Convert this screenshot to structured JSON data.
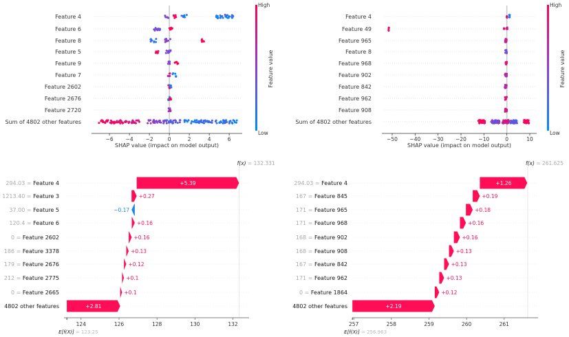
{
  "chart_data": [
    {
      "type": "scatter",
      "subtype": "shap-beeswarm",
      "position": "top-left",
      "xlabel": "SHAP value (impact on model output)",
      "xticks": [
        -6,
        -4,
        -2,
        0,
        2,
        4,
        6
      ],
      "xlim": [
        -7.8,
        7.3
      ],
      "features": [
        "Feature 4",
        "Feature 6",
        "Feature 8",
        "Feature 5",
        "Feature 9",
        "Feature 7",
        "Feature 2602",
        "Feature 2676",
        "Feature 2720",
        "Sum of 4802 other features"
      ],
      "clusters": [
        [
          [
            -0.3,
            -0.2,
            0.5
          ],
          [
            0.5,
            0.2,
            0.9
          ],
          [
            1.5,
            0.3,
            0.1
          ],
          [
            5.6,
            0.9,
            0.15
          ]
        ],
        [
          [
            -1.3,
            0.4,
            0.4
          ],
          [
            0.2,
            0.2,
            0.95
          ]
        ],
        [
          [
            -1.6,
            0.3,
            0.1
          ],
          [
            -0.2,
            0.3,
            0.5
          ],
          [
            3.3,
            0.2,
            0.95
          ]
        ],
        [
          [
            -1.3,
            0.2,
            0.95
          ],
          [
            -0.1,
            0.3,
            0.4
          ]
        ],
        [
          [
            -0.05,
            0.1,
            0.5
          ],
          [
            0.7,
            0.2,
            0.95
          ]
        ],
        [
          [
            -0.1,
            0.2,
            0.7
          ],
          [
            0.5,
            0.2,
            0.1
          ]
        ],
        [
          [
            0.0,
            0.1,
            0.9
          ],
          [
            0.1,
            0.1,
            0.2
          ]
        ],
        [
          [
            0.0,
            0.1,
            0.2
          ],
          [
            0.1,
            0.1,
            0.9
          ]
        ],
        [
          [
            0.0,
            0.1,
            0.5
          ],
          [
            0.05,
            0.1,
            0.7
          ]
        ],
        [
          [
            -6.0,
            1.1,
            0.95
          ],
          [
            -4.0,
            1.0,
            0.85
          ],
          [
            -1.5,
            0.7,
            0.5
          ],
          [
            0.3,
            0.9,
            0.35
          ],
          [
            2.5,
            1.0,
            0.15
          ],
          [
            4.6,
            1.2,
            0.2
          ],
          [
            6.4,
            0.4,
            0.1
          ]
        ]
      ],
      "colorbar": {
        "label": "Feature value",
        "high": "High",
        "low": "Low",
        "high_color": "#ff0052",
        "low_color": "#008bfb"
      }
    },
    {
      "type": "scatter",
      "subtype": "shap-beeswarm",
      "position": "top-right",
      "xlabel": "SHAP value (impact on model output)",
      "xticks": [
        -50,
        -40,
        -30,
        -20,
        -10,
        0,
        10
      ],
      "xlim": [
        -54.5,
        13
      ],
      "features": [
        "Feature 4",
        "Feature 49",
        "Feature 965",
        "Feature 8",
        "Feature 968",
        "Feature 902",
        "Feature 842",
        "Feature 962",
        "Feature 908",
        "Sum of 4802 other features"
      ],
      "clusters": [
        [
          [
            0.0,
            0.2,
            0.8
          ],
          [
            1.2,
            0.2,
            0.1
          ]
        ],
        [
          [
            -51.5,
            0.1,
            0.95
          ],
          [
            -1.2,
            0.2,
            0.95
          ],
          [
            0.1,
            0.2,
            0.7
          ]
        ],
        [
          [
            -0.5,
            0.4,
            0.8
          ]
        ],
        [
          [
            -0.3,
            0.4,
            0.4
          ]
        ],
        [
          [
            -0.4,
            0.4,
            0.8
          ]
        ],
        [
          [
            -0.4,
            0.4,
            0.75
          ]
        ],
        [
          [
            -0.5,
            0.4,
            0.7
          ]
        ],
        [
          [
            -0.4,
            0.4,
            0.75
          ]
        ],
        [
          [
            -0.4,
            0.4,
            0.75
          ]
        ],
        [
          [
            -11.0,
            1.5,
            0.95
          ],
          [
            -5.0,
            1.8,
            0.4
          ],
          [
            -0.5,
            1.5,
            0.8
          ],
          [
            3.0,
            1.5,
            0.3
          ],
          [
            8.5,
            1.2,
            0.95
          ]
        ]
      ],
      "colorbar": {
        "label": "Feature value",
        "high": "High",
        "low": "Low",
        "high_color": "#ff0052",
        "low_color": "#008bfb"
      }
    },
    {
      "type": "bar",
      "subtype": "shap-waterfall",
      "position": "bottom-left",
      "base_value_label": "E[f(X)]",
      "base_value": "123.25",
      "output_label": "f(x)",
      "output_value": "132.331",
      "base": 123.25,
      "output": 132.331,
      "xticks": [
        124,
        126,
        128,
        130,
        132
      ],
      "xlim": [
        123.1,
        132.85
      ],
      "rows": [
        {
          "value": "294.03",
          "feature": "Feature 4",
          "shap": 5.39,
          "text": "+5.39"
        },
        {
          "value": "1213.40",
          "feature": "Feature 3",
          "shap": 0.27,
          "text": "+0.27"
        },
        {
          "value": "37.00",
          "feature": "Feature 5",
          "shap": -0.17,
          "text": "−0.17"
        },
        {
          "value": "120.4",
          "feature": "Feature 6",
          "shap": 0.16,
          "text": "+0.16"
        },
        {
          "value": "0",
          "feature": "Feature 2602",
          "shap": 0.16,
          "text": "+0.16"
        },
        {
          "value": "186",
          "feature": "Feature 3378",
          "shap": 0.13,
          "text": "+0.13"
        },
        {
          "value": "179",
          "feature": "Feature 2676",
          "shap": 0.12,
          "text": "+0.12"
        },
        {
          "value": "212",
          "feature": "Feature 2775",
          "shap": 0.1,
          "text": "+0.1"
        },
        {
          "value": "0",
          "feature": "Feature 2665",
          "shap": 0.1,
          "text": "+0.1"
        },
        {
          "value": "",
          "feature": "4802 other features",
          "shap": 2.81,
          "text": "+2.81"
        }
      ],
      "pos_color": "#ff0d57",
      "neg_color": "#1e88e5"
    },
    {
      "type": "bar",
      "subtype": "shap-waterfall",
      "position": "bottom-right",
      "base_value_label": "E[f(X)]",
      "base_value": "256.963",
      "output_label": "f(x)",
      "output_value": "261.625",
      "base": 256.963,
      "output": 261.625,
      "xticks": [
        257,
        258,
        259,
        260,
        261
      ],
      "xlim": [
        256.96,
        261.9
      ],
      "rows": [
        {
          "value": "294.03",
          "feature": "Feature 4",
          "shap": 1.26,
          "text": "+1.26"
        },
        {
          "value": "167",
          "feature": "Feature 845",
          "shap": 0.19,
          "text": "+0.19"
        },
        {
          "value": "171",
          "feature": "Feature 965",
          "shap": 0.18,
          "text": "+0.18"
        },
        {
          "value": "171",
          "feature": "Feature 968",
          "shap": 0.16,
          "text": "+0.16"
        },
        {
          "value": "168",
          "feature": "Feature 902",
          "shap": 0.16,
          "text": "+0.16"
        },
        {
          "value": "168",
          "feature": "Feature 908",
          "shap": 0.13,
          "text": "+0.13"
        },
        {
          "value": "167",
          "feature": "Feature 842",
          "shap": 0.13,
          "text": "+0.13"
        },
        {
          "value": "171",
          "feature": "Feature 962",
          "shap": 0.13,
          "text": "+0.13"
        },
        {
          "value": "0",
          "feature": "Feature 1864",
          "shap": 0.12,
          "text": "+0.12"
        },
        {
          "value": "",
          "feature": "4802 other features",
          "shap": 2.19,
          "text": "+2.19"
        }
      ],
      "pos_color": "#ff0d57",
      "neg_color": "#1e88e5"
    }
  ]
}
